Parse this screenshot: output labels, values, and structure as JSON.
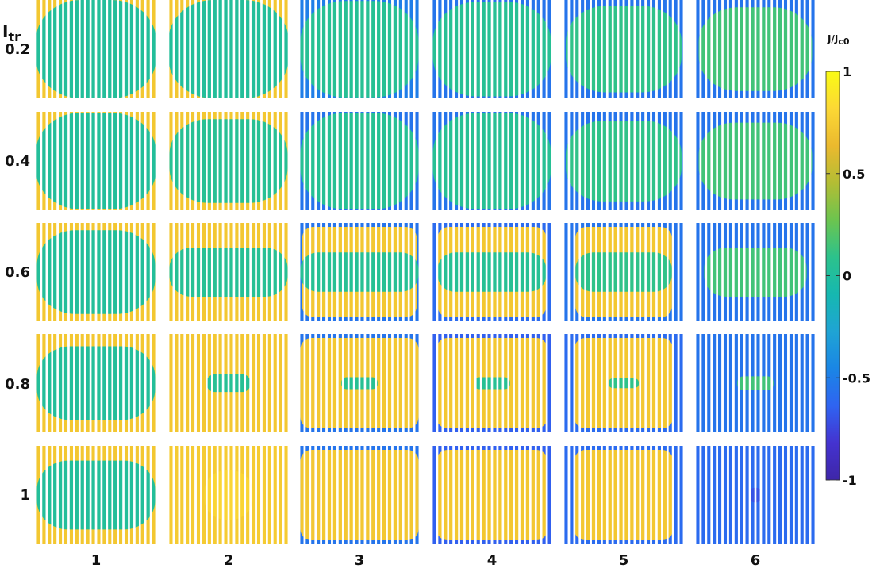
{
  "chart_data": {
    "type": "heatmap",
    "row_header": {
      "main": "I",
      "sub": "tr"
    },
    "row_labels": [
      "0.2",
      "0.4",
      "0.6",
      "0.8",
      "1"
    ],
    "col_labels": [
      "1",
      "2",
      "3",
      "4",
      "5",
      "6"
    ],
    "colorbar": {
      "label_main": "J/J",
      "label_sub": "c0",
      "range": [
        -1,
        1
      ],
      "ticks": [
        "1",
        "0.5",
        "0",
        "-0.5",
        "-1"
      ],
      "colormap": "parula"
    },
    "colors": {
      "stripe_gap": "#ffffff",
      "parula": [
        "#3e26a8",
        "#4433d0",
        "#2f64f1",
        "#1a86e5",
        "#1fa4d4",
        "#16b8b0",
        "#2cc28c",
        "#6cc44f",
        "#b3bd34",
        "#ebb92e",
        "#fcd835",
        "#f9fb15"
      ]
    },
    "panels": [
      {
        "row": 0,
        "col": 0,
        "bg": 0.72,
        "core": 0.02,
        "cw": 1.0,
        "ch": 1.0,
        "ring": 0.0,
        "ring_val": 0.72
      },
      {
        "row": 0,
        "col": 1,
        "bg": 0.72,
        "core": 0.02,
        "cw": 1.0,
        "ch": 1.0,
        "ring": 0.0,
        "ring_val": 0.72
      },
      {
        "row": 0,
        "col": 2,
        "bg": -0.5,
        "core": 0.05,
        "cw": 0.98,
        "ch": 0.98,
        "ring": 0.0,
        "ring_val": 0.72
      },
      {
        "row": 0,
        "col": 3,
        "bg": -0.55,
        "core": 0.05,
        "cw": 0.98,
        "ch": 0.96,
        "ring": 0.0,
        "ring_val": 0.72
      },
      {
        "row": 0,
        "col": 4,
        "bg": -0.55,
        "core": 0.1,
        "cw": 0.96,
        "ch": 0.88,
        "ring": 0.0,
        "ring_val": 0.72
      },
      {
        "row": 0,
        "col": 5,
        "bg": -0.55,
        "core": 0.15,
        "cw": 0.94,
        "ch": 0.85,
        "ring": 0.0,
        "ring_val": 0.72
      },
      {
        "row": 1,
        "col": 0,
        "bg": 0.72,
        "core": 0.02,
        "cw": 1.0,
        "ch": 0.98,
        "ring": 0.0,
        "ring_val": 0.72
      },
      {
        "row": 1,
        "col": 1,
        "bg": 0.72,
        "core": 0.05,
        "cw": 0.98,
        "ch": 0.85,
        "ring": 0.0,
        "ring_val": 0.72
      },
      {
        "row": 1,
        "col": 2,
        "bg": -0.55,
        "core": 0.05,
        "cw": 0.98,
        "ch": 0.98,
        "ring": 0.0,
        "ring_val": 0.72
      },
      {
        "row": 1,
        "col": 3,
        "bg": -0.55,
        "core": 0.05,
        "cw": 0.98,
        "ch": 0.98,
        "ring": 0.0,
        "ring_val": 0.72
      },
      {
        "row": 1,
        "col": 4,
        "bg": -0.55,
        "core": 0.1,
        "cw": 0.96,
        "ch": 0.82,
        "ring": 0.0,
        "ring_val": 0.72
      },
      {
        "row": 1,
        "col": 5,
        "bg": -0.55,
        "core": 0.15,
        "cw": 0.94,
        "ch": 0.78,
        "ring": 0.0,
        "ring_val": 0.72
      },
      {
        "row": 2,
        "col": 0,
        "bg": 0.72,
        "core": 0.02,
        "cw": 0.98,
        "ch": 0.85,
        "ring": 0.0,
        "ring_val": 0.72
      },
      {
        "row": 2,
        "col": 1,
        "bg": 0.72,
        "core": 0.05,
        "cw": 0.98,
        "ch": 0.5,
        "ring": 0.0,
        "ring_val": 0.72
      },
      {
        "row": 2,
        "col": 2,
        "bg": -0.55,
        "core": 0.05,
        "cw": 0.98,
        "ch": 0.4,
        "ring": 0.95,
        "ring_val": 0.72
      },
      {
        "row": 2,
        "col": 3,
        "bg": -0.6,
        "core": 0.05,
        "cw": 0.9,
        "ch": 0.4,
        "ring": 0.9,
        "ring_val": 0.72
      },
      {
        "row": 2,
        "col": 4,
        "bg": -0.55,
        "core": 0.1,
        "cw": 0.8,
        "ch": 0.4,
        "ring": 0.8,
        "ring_val": 0.72
      },
      {
        "row": 2,
        "col": 5,
        "bg": -0.55,
        "core": 0.15,
        "cw": 0.85,
        "ch": 0.5,
        "ring": 0.0,
        "ring_val": 0.72
      },
      {
        "row": 3,
        "col": 0,
        "bg": 0.72,
        "core": 0.02,
        "cw": 0.98,
        "ch": 0.75,
        "ring": 0.0,
        "ring_val": 0.72
      },
      {
        "row": 3,
        "col": 1,
        "bg": 0.72,
        "core": 0.05,
        "cw": 0.36,
        "ch": 0.18,
        "ring": 0.0,
        "ring_val": 0.72
      },
      {
        "row": 3,
        "col": 2,
        "bg": -0.55,
        "core": 0.05,
        "cw": 0.3,
        "ch": 0.12,
        "ring": 0.98,
        "ring_val": 0.72
      },
      {
        "row": 3,
        "col": 3,
        "bg": -0.65,
        "core": 0.05,
        "cw": 0.3,
        "ch": 0.12,
        "ring": 0.92,
        "ring_val": 0.72
      },
      {
        "row": 3,
        "col": 4,
        "bg": -0.6,
        "core": 0.1,
        "cw": 0.25,
        "ch": 0.1,
        "ring": 0.82,
        "ring_val": 0.72
      },
      {
        "row": 3,
        "col": 5,
        "bg": -0.55,
        "core": 0.15,
        "cw": 0.3,
        "ch": 0.14,
        "ring": 0.0,
        "ring_val": 0.72
      },
      {
        "row": 4,
        "col": 0,
        "bg": 0.72,
        "core": 0.02,
        "cw": 0.98,
        "ch": 0.7,
        "ring": 0.0,
        "ring_val": 0.72
      },
      {
        "row": 4,
        "col": 1,
        "bg": 0.74,
        "core": 0.8,
        "cw": 0.4,
        "ch": 0.5,
        "ring": 0.0,
        "ring_val": 0.72
      },
      {
        "row": 4,
        "col": 2,
        "bg": -0.55,
        "core": 0.72,
        "cw": 0.0,
        "ch": 0.0,
        "ring": 0.98,
        "ring_val": 0.72
      },
      {
        "row": 4,
        "col": 3,
        "bg": -0.65,
        "core": 0.72,
        "cw": 0.0,
        "ch": 0.0,
        "ring": 0.92,
        "ring_val": 0.72
      },
      {
        "row": 4,
        "col": 4,
        "bg": -0.6,
        "core": 0.72,
        "cw": 0.0,
        "ch": 0.0,
        "ring": 0.82,
        "ring_val": 0.72
      },
      {
        "row": 4,
        "col": 5,
        "bg": -0.6,
        "core": -0.7,
        "cw": 0.1,
        "ch": 0.15,
        "ring": 0.0,
        "ring_val": 0.72
      }
    ]
  }
}
